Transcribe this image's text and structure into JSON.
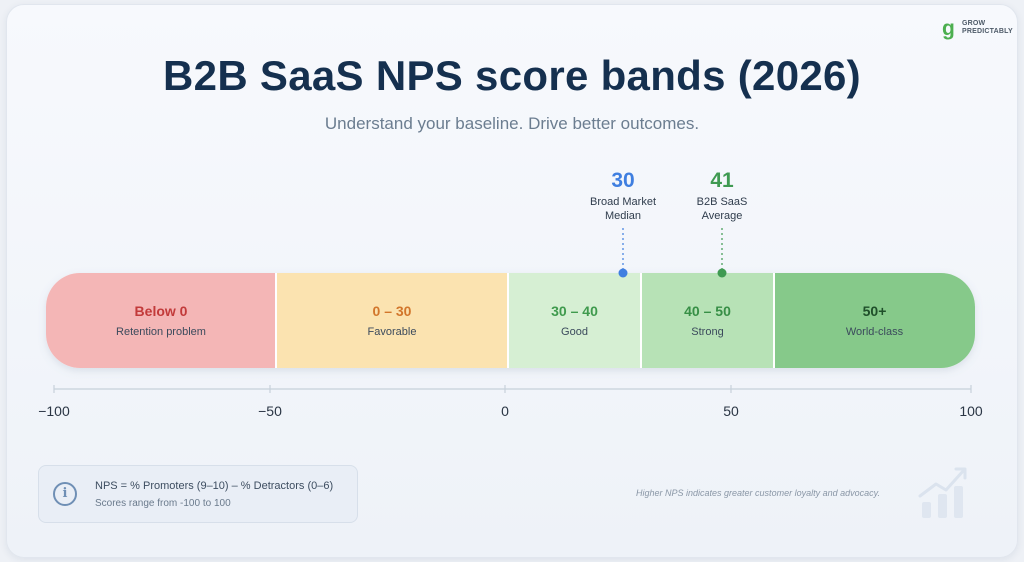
{
  "brand": {
    "name_line1": "GROW",
    "name_line2": "PREDICTABLY",
    "mark": "g"
  },
  "header": {
    "title": "B2B SaaS NPS score bands (2026)",
    "subtitle": "Understand your baseline. Drive better outcomes."
  },
  "chart_data": {
    "type": "bar",
    "title": "B2B SaaS NPS score bands (2026)",
    "xlim": [
      -100,
      100
    ],
    "ticks": [
      -100,
      -50,
      0,
      50,
      100
    ],
    "tick_labels": [
      "−100",
      "−50",
      "0",
      "50",
      "100"
    ],
    "bands": [
      {
        "range_label": "Below 0",
        "description": "Retention problem",
        "from": -100,
        "to": 0,
        "color": "#f4b6b6",
        "text_color": "#c23a3a"
      },
      {
        "range_label": "0 – 30",
        "description": "Favorable",
        "from": 0,
        "to": 30,
        "color": "#fbe3b0",
        "text_color": "#d2762b"
      },
      {
        "range_label": "30 – 40",
        "description": "Good",
        "from": 30,
        "to": 40,
        "color": "#d6efd3",
        "text_color": "#3f9a4d"
      },
      {
        "range_label": "40 – 50",
        "description": "Strong",
        "from": 40,
        "to": 50,
        "color": "#b7e2b6",
        "text_color": "#378f46"
      },
      {
        "range_label": "50+",
        "description": "World-class",
        "from": 50,
        "to": 100,
        "color": "#86c98a",
        "text_color": "#1f4f2a"
      }
    ],
    "markers": [
      {
        "value": 30,
        "value_label": "30",
        "label_line1": "Broad Market",
        "label_line2": "Median",
        "color": "#3f7fe0"
      },
      {
        "value": 41,
        "value_label": "41",
        "label_line1": "B2B SaaS",
        "label_line2": "Average",
        "color": "#3f9a52"
      }
    ]
  },
  "info": {
    "formula": "NPS = % Promoters (9–10) – % Detractors (0–6)",
    "range_note": "Scores range from -100 to 100",
    "icon": "info-icon"
  },
  "footnote": "Higher NPS indicates greater customer loyalty and advocacy.",
  "decor_icon": "trend-chart-icon"
}
